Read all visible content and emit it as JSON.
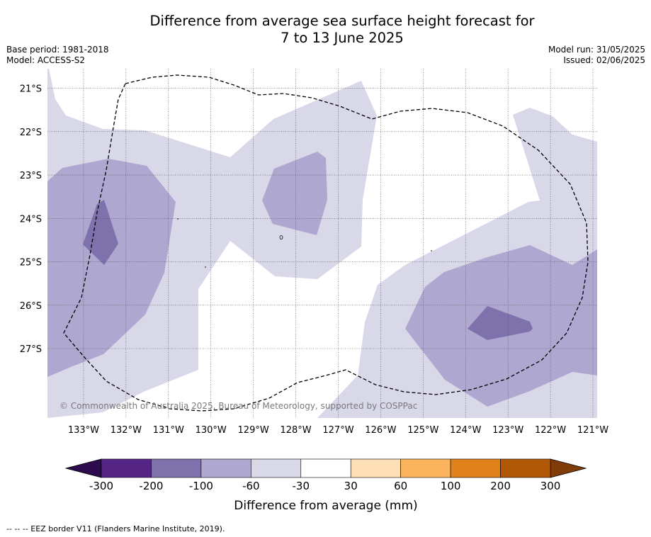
{
  "title_line1": "Difference from average sea surface height forecast for",
  "title_line2": "7 to 13 June 2025",
  "meta_left": {
    "base_period": "Base period: 1981-2018",
    "model": "Model: ACCESS-S2"
  },
  "meta_right": {
    "model_run": "Model run: 31/05/2025",
    "issued": "Issued: 02/06/2025"
  },
  "map": {
    "lon_range": [
      -133.85,
      -120.9
    ],
    "lat_range": [
      -28.6,
      -20.55
    ],
    "lon_ticks": [
      -133,
      -132,
      -131,
      -130,
      -129,
      -128,
      -127,
      -126,
      -125,
      -124,
      -123,
      -122,
      -121
    ],
    "lon_tick_labels": [
      "133°W",
      "132°W",
      "131°W",
      "130°W",
      "129°W",
      "128°W",
      "127°W",
      "126°W",
      "125°W",
      "124°W",
      "123°W",
      "122°W",
      "121°W"
    ],
    "lat_ticks": [
      -21,
      -22,
      -23,
      -24,
      -25,
      -26,
      -27
    ],
    "lat_tick_labels": [
      "21°S",
      "22°S",
      "23°S",
      "24°S",
      "25°S",
      "26°S",
      "27°S"
    ],
    "grid": true,
    "copyright": "© Commonwealth of Australia 2025, Bureau of Meteorology, supported by COSPPac",
    "level_colors": {
      "minus60_to_minus30": "#d8d8e8",
      "minus100_to_minus60": "#aea7cf",
      "minus200_to_minus100": "#7e71ac",
      "minus30_to_30": "#ffffff"
    }
  },
  "colorbar": {
    "label": "Difference from average (mm)",
    "tick_labels": [
      "-300",
      "-200",
      "-100",
      "-60",
      "-30",
      "30",
      "60",
      "100",
      "200",
      "300"
    ],
    "colors": [
      "#552586",
      "#7e71ac",
      "#aea7cf",
      "#d8d8e8",
      "#ffffff",
      "#fee0b6",
      "#fbb45b",
      "#e1811a",
      "#b15807"
    ],
    "extend_low_color": "#2d0b4e",
    "extend_high_color": "#7f3b08"
  },
  "footnote": "--  --  -- EEZ border V11 (Flanders Marine Institute, 2019)."
}
